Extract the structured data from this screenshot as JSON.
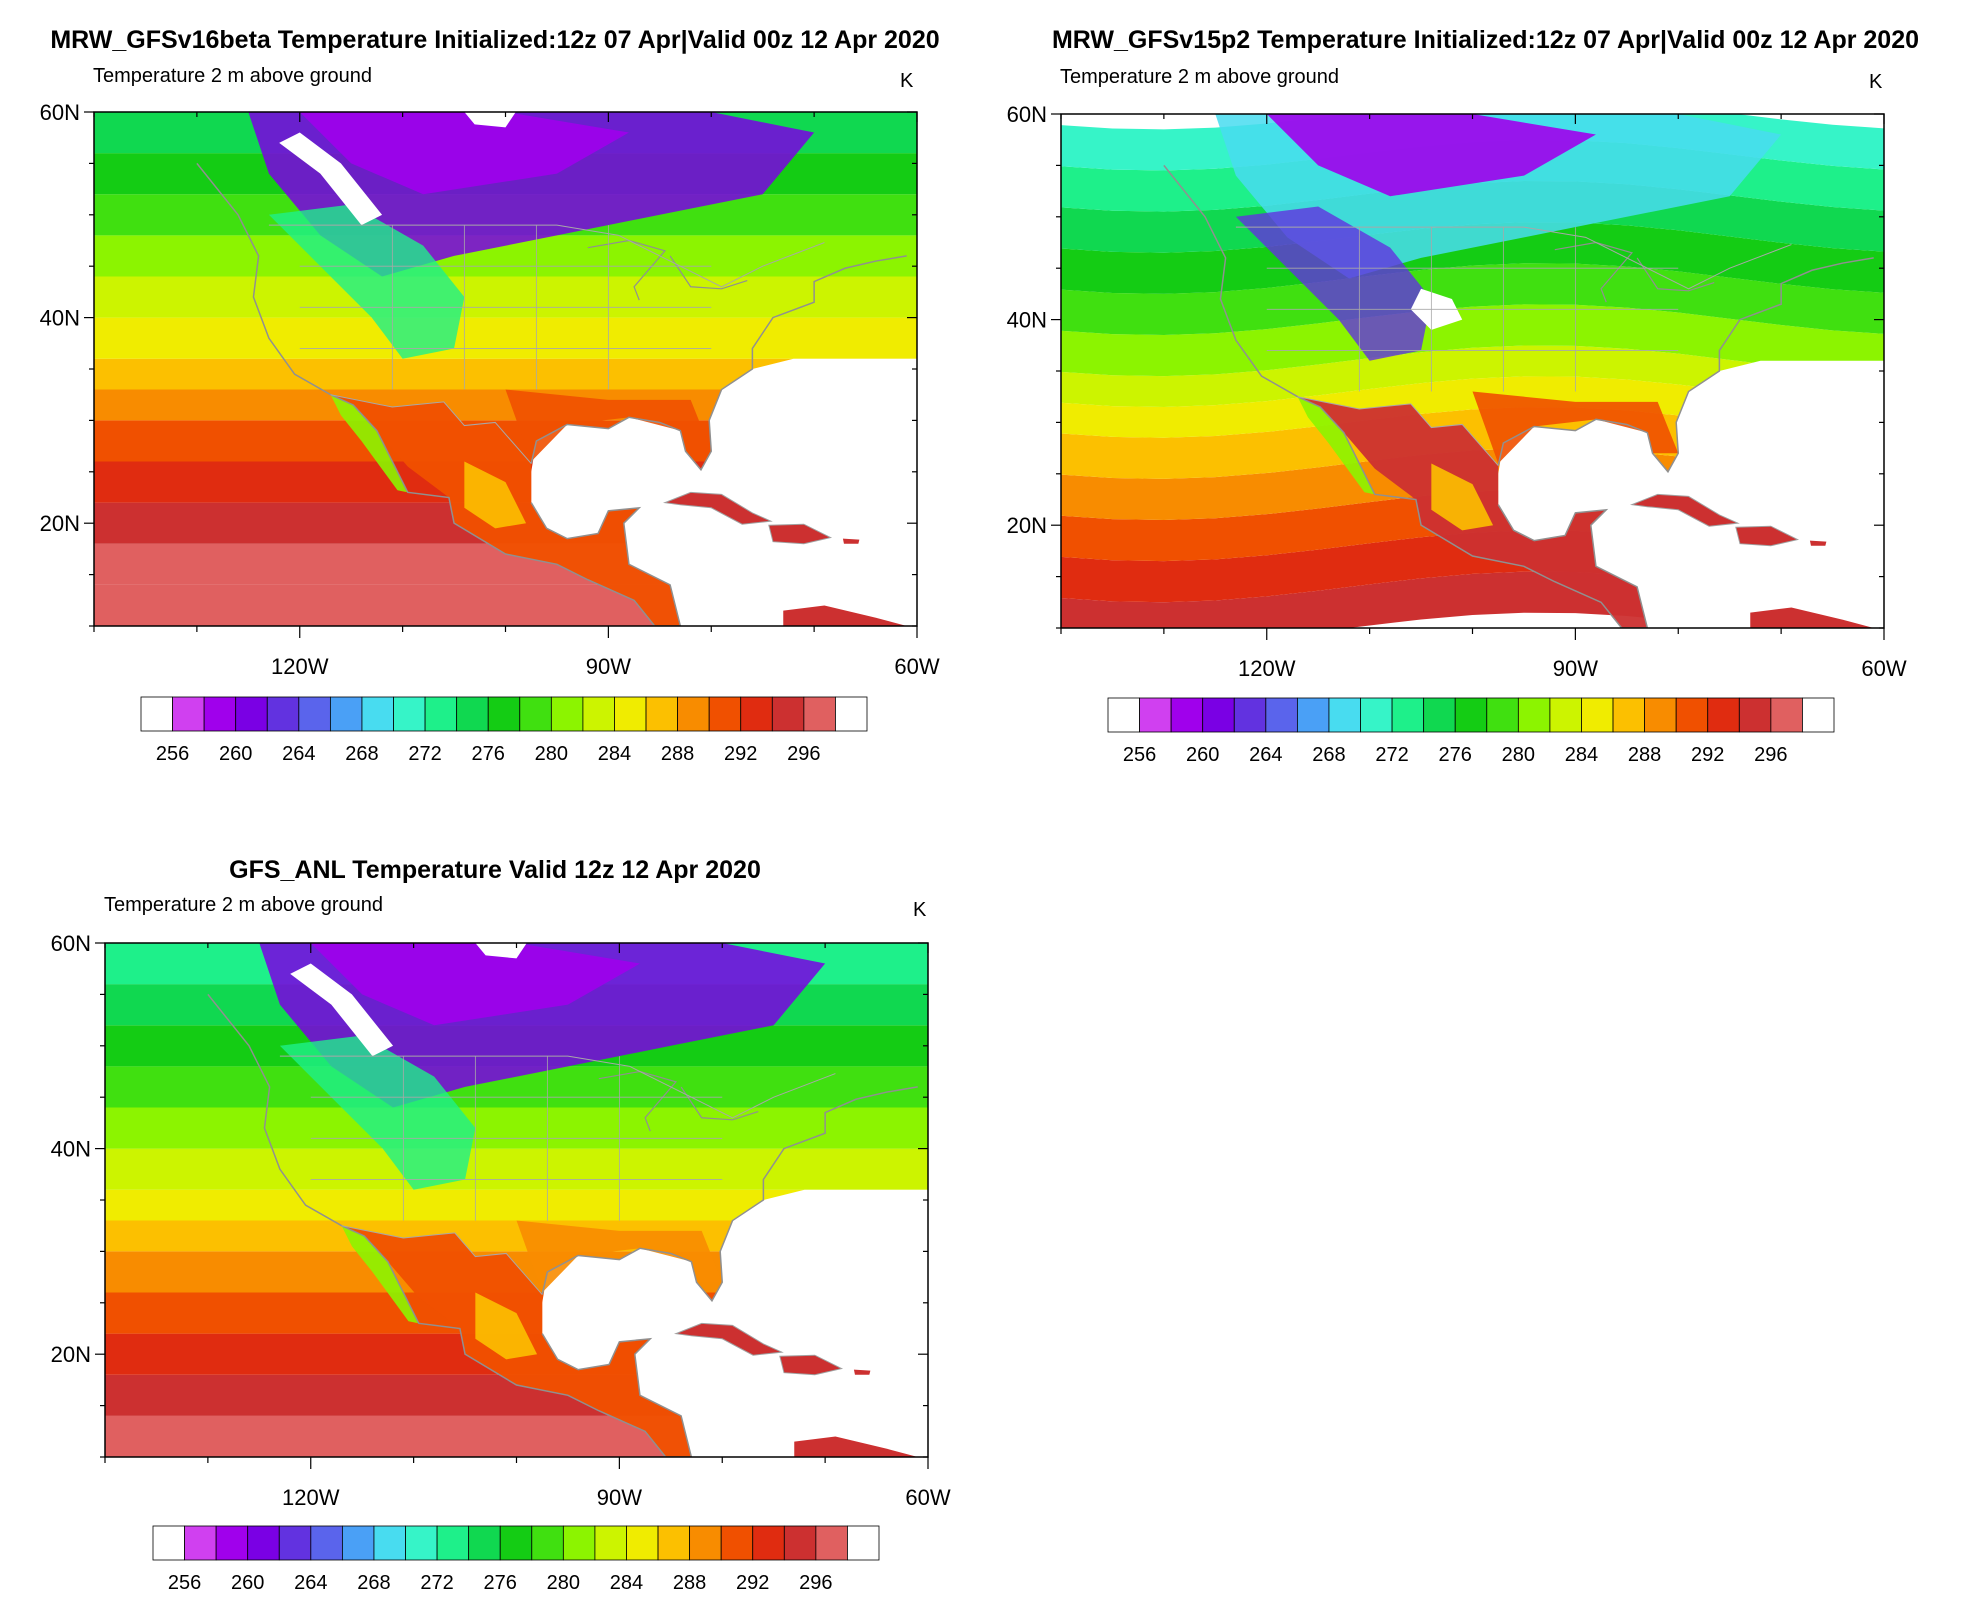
{
  "panels": [
    {
      "id": "gfsv16beta",
      "title": "MRW_GFSv16beta Temperature Initialized:12z 07 Apr|Valid 00z 12 Apr 2020",
      "subtitle": "Temperature 2 m above ground",
      "units": "K",
      "lat_labels": [
        "60N",
        "40N",
        "20N"
      ],
      "lon_labels": [
        "120W",
        "90W",
        "60W"
      ]
    },
    {
      "id": "gfsv15p2",
      "title": "MRW_GFSv15p2 Temperature Initialized:12z 07 Apr|Valid 00z 12 Apr 2020",
      "subtitle": "Temperature 2 m above ground",
      "units": "K",
      "lat_labels": [
        "60N",
        "40N",
        "20N"
      ],
      "lon_labels": [
        "120W",
        "90W",
        "60W"
      ]
    },
    {
      "id": "gfs-anl",
      "title": "GFS_ANL Temperature Valid 12z 12 Apr 2020",
      "subtitle": "Temperature 2 m above ground",
      "units": "K",
      "lat_labels": [
        "60N",
        "40N",
        "20N"
      ],
      "lon_labels": [
        "120W",
        "90W",
        "60W"
      ]
    }
  ],
  "colorbar": {
    "labels": [
      "256",
      "260",
      "264",
      "268",
      "272",
      "276",
      "280",
      "284",
      "288",
      "292",
      "296"
    ],
    "colors": [
      "#ffffff",
      "#d040f0",
      "#a000ec",
      "#7a00e4",
      "#6232e0",
      "#5a64ec",
      "#4aa0f6",
      "#48dcf0",
      "#36f4c8",
      "#1ef08a",
      "#10d850",
      "#14cc14",
      "#40e010",
      "#8cf400",
      "#ccf400",
      "#f0ec00",
      "#fcc000",
      "#f88c00",
      "#f05000",
      "#e02c10",
      "#cc3030",
      "#e06060",
      "#ffffff"
    ]
  }
}
